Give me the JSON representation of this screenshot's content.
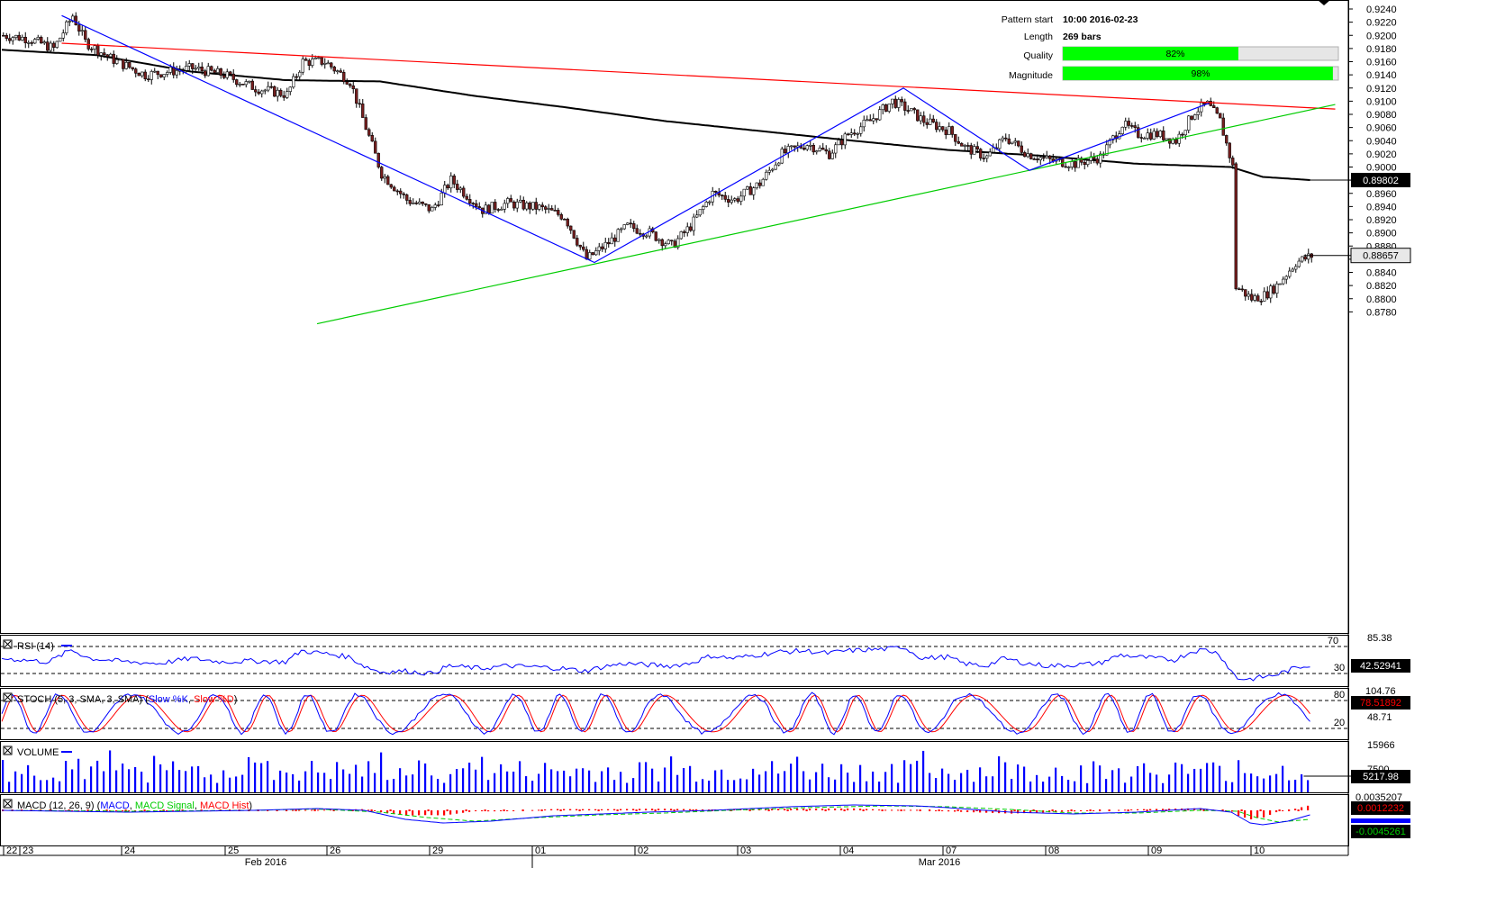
{
  "info_panel": {
    "pattern_start_label": "Pattern start",
    "pattern_start_value": "10:00 2016-02-23",
    "length_label": "Length",
    "length_value": "269 bars",
    "quality_label": "Quality",
    "quality_value": "82%",
    "quality_fraction": 0.82,
    "magnitude_label": "Magnitude",
    "magnitude_value": "98%",
    "magnitude_fraction": 0.98
  },
  "colors": {
    "candle_up": "#ffffff",
    "candle_down": "#7a1f1f",
    "moving_average": "#000000",
    "resistance": "#ff0000",
    "support": "#00cc00",
    "zigzag": "#0000ff",
    "rsi": "#0000ff",
    "stoch_k": "#0000ff",
    "stoch_d": "#ff0000",
    "volume": "#0000ff",
    "macd": "#0000ff",
    "macd_signal": "#00cc00",
    "macd_hist": "#ff0000",
    "bar_fill": "#00ff00"
  },
  "chart_data": {
    "type": "candlestick",
    "ylim": [
      0.877,
      0.9245
    ],
    "y_ticks": [
      "0.9240",
      "0.9220",
      "0.9200",
      "0.9180",
      "0.9160",
      "0.9140",
      "0.9120",
      "0.9100",
      "0.9080",
      "0.9060",
      "0.9040",
      "0.9020",
      "0.9000",
      "0.8980",
      "0.8960",
      "0.8940",
      "0.8920",
      "0.8900",
      "0.8880",
      "0.8860",
      "0.8840",
      "0.8820",
      "0.8800",
      "0.8780"
    ],
    "current_price_label": "0.88657",
    "current_price": 0.88657,
    "ma_label": "0.89802",
    "ma_value": 0.89802,
    "x_day_labels": [
      "22",
      "23",
      "24",
      "25",
      "26",
      "29",
      "01",
      "02",
      "03",
      "04",
      "07",
      "08",
      "09",
      "10"
    ],
    "x_month_labels": [
      "Feb 2016",
      "Mar 2016"
    ],
    "price_anchors": [
      [
        0,
        0.92
      ],
      [
        8,
        0.9195
      ],
      [
        16,
        0.918
      ],
      [
        22,
        0.923
      ],
      [
        26,
        0.919
      ],
      [
        34,
        0.9165
      ],
      [
        45,
        0.914
      ],
      [
        60,
        0.915
      ],
      [
        70,
        0.914
      ],
      [
        80,
        0.912
      ],
      [
        90,
        0.911
      ],
      [
        95,
        0.916
      ],
      [
        102,
        0.916
      ],
      [
        110,
        0.913
      ],
      [
        115,
        0.906
      ],
      [
        120,
        0.899
      ],
      [
        128,
        0.895
      ],
      [
        136,
        0.8935
      ],
      [
        142,
        0.898
      ],
      [
        152,
        0.8935
      ],
      [
        160,
        0.8945
      ],
      [
        170,
        0.8938
      ],
      [
        178,
        0.8925
      ],
      [
        185,
        0.886
      ],
      [
        192,
        0.8885
      ],
      [
        198,
        0.891
      ],
      [
        205,
        0.89
      ],
      [
        212,
        0.888
      ],
      [
        218,
        0.891
      ],
      [
        225,
        0.896
      ],
      [
        232,
        0.895
      ],
      [
        240,
        0.8975
      ],
      [
        247,
        0.902
      ],
      [
        255,
        0.9035
      ],
      [
        262,
        0.902
      ],
      [
        268,
        0.905
      ],
      [
        275,
        0.907
      ],
      [
        282,
        0.91
      ],
      [
        286,
        0.909
      ],
      [
        292,
        0.907
      ],
      [
        300,
        0.9055
      ],
      [
        305,
        0.903
      ],
      [
        312,
        0.9015
      ],
      [
        318,
        0.9045
      ],
      [
        325,
        0.902
      ],
      [
        332,
        0.901
      ],
      [
        340,
        0.9005
      ],
      [
        348,
        0.9015
      ],
      [
        355,
        0.9065
      ],
      [
        360,
        0.905
      ],
      [
        366,
        0.905
      ],
      [
        372,
        0.904
      ],
      [
        378,
        0.9085
      ],
      [
        382,
        0.9095
      ],
      [
        386,
        0.907
      ],
      [
        390,
        0.9
      ],
      [
        392,
        0.8815
      ],
      [
        396,
        0.88
      ],
      [
        400,
        0.8805
      ],
      [
        404,
        0.882
      ],
      [
        410,
        0.8855
      ],
      [
        415,
        0.8865
      ]
    ],
    "moving_average": {
      "name": "",
      "anchors": [
        [
          0,
          0.9178
        ],
        [
          30,
          0.917
        ],
        [
          60,
          0.9145
        ],
        [
          90,
          0.9132
        ],
        [
          120,
          0.913
        ],
        [
          150,
          0.9108
        ],
        [
          180,
          0.909
        ],
        [
          210,
          0.907
        ],
        [
          240,
          0.9055
        ],
        [
          270,
          0.904
        ],
        [
          300,
          0.9026
        ],
        [
          330,
          0.9017
        ],
        [
          360,
          0.9005
        ],
        [
          390,
          0.9
        ],
        [
          400,
          0.8985
        ],
        [
          415,
          0.89802
        ]
      ]
    },
    "resistance_line": {
      "from": [
        19,
        0.9188
      ],
      "to": [
        423,
        0.9088
      ]
    },
    "support_line": {
      "from": [
        100,
        0.8762
      ],
      "to": [
        423,
        0.9095
      ]
    },
    "zigzag": [
      [
        19,
        0.923
      ],
      [
        188,
        0.8855
      ],
      [
        286,
        0.912
      ],
      [
        326,
        0.8995
      ],
      [
        383,
        0.9097
      ]
    ],
    "indicators": {
      "rsi": {
        "label": "RSI (14)",
        "levels": [
          "70",
          "30"
        ],
        "scale_label": "85.38",
        "value_label": "42.52941",
        "anchors": [
          [
            0,
            55
          ],
          [
            15,
            48
          ],
          [
            22,
            72
          ],
          [
            28,
            55
          ],
          [
            40,
            48
          ],
          [
            50,
            45
          ],
          [
            60,
            55
          ],
          [
            70,
            48
          ],
          [
            80,
            50
          ],
          [
            90,
            48
          ],
          [
            95,
            70
          ],
          [
            102,
            65
          ],
          [
            110,
            58
          ],
          [
            115,
            40
          ],
          [
            120,
            28
          ],
          [
            128,
            30
          ],
          [
            136,
            25
          ],
          [
            142,
            40
          ],
          [
            152,
            35
          ],
          [
            160,
            40
          ],
          [
            170,
            38
          ],
          [
            178,
            35
          ],
          [
            185,
            30
          ],
          [
            192,
            40
          ],
          [
            198,
            45
          ],
          [
            205,
            42
          ],
          [
            212,
            40
          ],
          [
            218,
            45
          ],
          [
            225,
            60
          ],
          [
            232,
            55
          ],
          [
            240,
            62
          ],
          [
            247,
            68
          ],
          [
            255,
            70
          ],
          [
            262,
            65
          ],
          [
            268,
            70
          ],
          [
            275,
            72
          ],
          [
            282,
            74
          ],
          [
            286,
            78
          ],
          [
            292,
            55
          ],
          [
            300,
            58
          ],
          [
            305,
            45
          ],
          [
            312,
            40
          ],
          [
            318,
            55
          ],
          [
            325,
            45
          ],
          [
            332,
            40
          ],
          [
            340,
            42
          ],
          [
            348,
            45
          ],
          [
            355,
            62
          ],
          [
            360,
            58
          ],
          [
            366,
            55
          ],
          [
            372,
            52
          ],
          [
            378,
            70
          ],
          [
            382,
            72
          ],
          [
            386,
            65
          ],
          [
            390,
            30
          ],
          [
            392,
            15
          ],
          [
            396,
            14
          ],
          [
            400,
            18
          ],
          [
            404,
            22
          ],
          [
            410,
            35
          ],
          [
            415,
            42.5
          ]
        ]
      },
      "stoch": {
        "label": "STOCH (5, 3, SMA, 3, SMA)",
        "k_name": "Slow %K",
        "d_name": "Slow %D",
        "levels": [
          "80",
          "20"
        ],
        "scale_top_label": "104.76",
        "scale_mid_label": "48.71",
        "value_label": "78.51892"
      },
      "volume": {
        "label": "VOLUME",
        "scale_top_label": "15966",
        "scale_mid_label": "7500",
        "value_label": "5217.98"
      },
      "macd": {
        "label": "MACD (12, 26, 9)",
        "line_name": "MACD",
        "signal_name": "MACD Signal",
        "hist_name": "MACD Hist",
        "scale_label": "0.0035207",
        "value_label_1": "0.0012232",
        "value_label_2": "-0.0045261"
      }
    }
  }
}
